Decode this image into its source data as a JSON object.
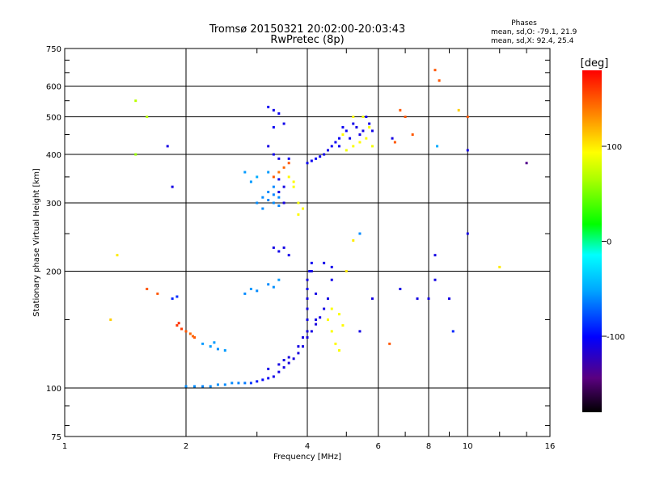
{
  "chart_data": {
    "type": "scatter",
    "title": "Tromsø 20150321 20:02:00-20:03:43",
    "subtitle": "RwPretec (8p)",
    "xlabel": "Frequency [MHz]",
    "ylabel": "Stationary phase Virtual Height [km]",
    "x_scale": "log",
    "y_scale": "log",
    "xlim": [
      1,
      16
    ],
    "ylim": [
      75,
      750
    ],
    "x_ticks": [
      "1",
      "2",
      "4",
      "6",
      "8",
      "10",
      "16"
    ],
    "x_tick_values": [
      1,
      2,
      4,
      6,
      8,
      10,
      16
    ],
    "y_ticks": [
      "75",
      "100",
      "200",
      "300",
      "400",
      "500",
      "600",
      "750"
    ],
    "y_tick_values": [
      75,
      100,
      200,
      300,
      400,
      500,
      600,
      750
    ],
    "grid": true,
    "phases_header": "Phases",
    "phases_line1": "mean, sd,O: -79.1, 21.9",
    "phases_line2": "mean, sd,X:  92.4, 25.4",
    "colorbar": {
      "label": "[deg]",
      "range": [
        -180,
        180
      ],
      "ticks": [
        "100",
        "0",
        "-100"
      ],
      "tick_values": [
        100,
        0,
        -100
      ]
    },
    "series": [
      {
        "values": [
          [
            2.0,
            101,
            -60
          ],
          [
            2.1,
            101,
            -60
          ],
          [
            2.2,
            101,
            -62
          ],
          [
            2.3,
            101,
            -60
          ],
          [
            2.4,
            102,
            -58
          ],
          [
            2.5,
            102,
            -60
          ],
          [
            2.6,
            103,
            -60
          ],
          [
            2.7,
            103,
            -62
          ],
          [
            2.8,
            103,
            -65
          ],
          [
            2.9,
            103,
            -85
          ],
          [
            3.0,
            104,
            -95
          ],
          [
            3.1,
            105,
            -100
          ],
          [
            3.2,
            106,
            -105
          ],
          [
            3.3,
            107,
            -108
          ],
          [
            3.4,
            110,
            -110
          ],
          [
            3.5,
            113,
            -110
          ],
          [
            3.6,
            116,
            -112
          ],
          [
            3.7,
            119,
            -112
          ],
          [
            3.8,
            123,
            -112
          ],
          [
            3.9,
            128,
            -110
          ],
          [
            4.0,
            135,
            -112
          ],
          [
            4.1,
            140,
            -110
          ],
          [
            4.2,
            146,
            -112
          ],
          [
            4.3,
            152,
            -110
          ],
          [
            4.4,
            160,
            -110
          ],
          [
            4.5,
            170,
            -110
          ],
          [
            3.4,
            115,
            -110
          ],
          [
            3.6,
            120,
            -112
          ],
          [
            3.8,
            128,
            -110
          ],
          [
            4.0,
            140,
            -112
          ],
          [
            4.2,
            150,
            -110
          ],
          [
            3.2,
            112,
            -108
          ],
          [
            3.5,
            118,
            -110
          ],
          [
            3.9,
            135,
            -112
          ],
          [
            4.0,
            150,
            -108
          ],
          [
            4.0,
            160,
            -110
          ],
          [
            4.0,
            170,
            -110
          ],
          [
            4.0,
            180,
            -108
          ],
          [
            4.0,
            190,
            -110
          ],
          [
            4.05,
            200,
            -108
          ],
          [
            4.1,
            210,
            -105
          ],
          [
            4.6,
            190,
            -108
          ],
          [
            4.6,
            205,
            -108
          ],
          [
            4.4,
            210,
            -108
          ],
          [
            4.2,
            175,
            -110
          ],
          [
            4.1,
            200,
            -110
          ],
          [
            4.0,
            380,
            -105
          ],
          [
            4.2,
            390,
            -105
          ],
          [
            4.4,
            400,
            -108
          ],
          [
            4.6,
            420,
            -105
          ],
          [
            4.8,
            440,
            -105
          ],
          [
            5.0,
            460,
            -105
          ],
          [
            5.2,
            480,
            -108
          ],
          [
            4.9,
            470,
            -105
          ],
          [
            4.3,
            395,
            -105
          ],
          [
            4.5,
            410,
            -108
          ],
          [
            4.7,
            430,
            -105
          ],
          [
            5.3,
            470,
            -110
          ],
          [
            5.5,
            460,
            -110
          ],
          [
            5.7,
            480,
            -110
          ],
          [
            5.8,
            460,
            -108
          ],
          [
            5.6,
            500,
            -110
          ],
          [
            4.1,
            385,
            -105
          ],
          [
            4.8,
            420,
            -105
          ],
          [
            5.1,
            440,
            -108
          ],
          [
            5.4,
            450,
            -110
          ],
          [
            5.0,
            410,
            90
          ],
          [
            5.2,
            420,
            92
          ],
          [
            5.4,
            430,
            95
          ],
          [
            5.6,
            440,
            95
          ],
          [
            5.8,
            420,
            90
          ],
          [
            5.5,
            500,
            90
          ],
          [
            5.2,
            500,
            92
          ],
          [
            4.9,
            450,
            95
          ],
          [
            5.7,
            470,
            92
          ],
          [
            4.5,
            150,
            95
          ],
          [
            4.6,
            140,
            92
          ],
          [
            4.7,
            130,
            95
          ],
          [
            4.8,
            125,
            92
          ],
          [
            4.8,
            155,
            92
          ],
          [
            4.6,
            160,
            92
          ],
          [
            4.9,
            145,
            95
          ],
          [
            3.0,
            300,
            -60
          ],
          [
            3.1,
            310,
            -60
          ],
          [
            3.2,
            305,
            -62
          ],
          [
            3.3,
            300,
            -60
          ],
          [
            3.4,
            295,
            -62
          ],
          [
            3.2,
            320,
            -60
          ],
          [
            3.1,
            290,
            -60
          ],
          [
            3.3,
            315,
            -62
          ],
          [
            3.4,
            310,
            -60
          ],
          [
            3.2,
            360,
            -55
          ],
          [
            3.0,
            350,
            -50
          ],
          [
            2.9,
            340,
            -55
          ],
          [
            2.8,
            360,
            -55
          ],
          [
            3.3,
            330,
            -60
          ],
          [
            3.6,
            350,
            95
          ],
          [
            3.7,
            340,
            95
          ],
          [
            3.8,
            280,
            95
          ],
          [
            3.9,
            290,
            95
          ],
          [
            3.8,
            300,
            90
          ],
          [
            3.7,
            330,
            92
          ],
          [
            3.4,
            320,
            -110
          ],
          [
            3.5,
            330,
            -110
          ],
          [
            3.4,
            345,
            -108
          ],
          [
            3.5,
            300,
            -110
          ],
          [
            3.3,
            230,
            -110
          ],
          [
            3.4,
            225,
            -108
          ],
          [
            3.5,
            230,
            -110
          ],
          [
            3.6,
            220,
            -108
          ],
          [
            3.2,
            530,
            -105
          ],
          [
            3.3,
            520,
            -108
          ],
          [
            3.4,
            510,
            -105
          ],
          [
            3.5,
            480,
            -108
          ],
          [
            3.3,
            470,
            -105
          ],
          [
            3.2,
            420,
            -110
          ],
          [
            3.3,
            400,
            -108
          ],
          [
            3.4,
            390,
            -110
          ],
          [
            3.6,
            390,
            -105
          ],
          [
            3.5,
            370,
            145
          ],
          [
            3.4,
            360,
            140
          ],
          [
            3.6,
            380,
            150
          ],
          [
            3.3,
            350,
            150
          ],
          [
            2.2,
            130,
            -55
          ],
          [
            2.3,
            128,
            -55
          ],
          [
            2.4,
            126,
            -58
          ],
          [
            2.5,
            125,
            -55
          ],
          [
            2.35,
            131,
            -55
          ],
          [
            2.0,
            140,
            150
          ],
          [
            2.05,
            138,
            145
          ],
          [
            2.1,
            135,
            150
          ],
          [
            2.08,
            136,
            145
          ],
          [
            1.9,
            145,
            160
          ],
          [
            1.95,
            142,
            160
          ],
          [
            1.92,
            147,
            165
          ],
          [
            1.85,
            170,
            -90
          ],
          [
            1.9,
            172,
            -88
          ],
          [
            2.8,
            175,
            -60
          ],
          [
            2.9,
            180,
            -55
          ],
          [
            3.0,
            178,
            -60
          ],
          [
            3.2,
            185,
            -60
          ],
          [
            3.4,
            190,
            -55
          ],
          [
            3.3,
            182,
            -58
          ],
          [
            1.6,
            180,
            150
          ],
          [
            1.7,
            175,
            150
          ],
          [
            1.5,
            550,
            70
          ],
          [
            1.5,
            400,
            60
          ],
          [
            1.6,
            500,
            70
          ],
          [
            1.8,
            420,
            -110
          ],
          [
            1.35,
            220,
            100
          ],
          [
            1.3,
            150,
            110
          ],
          [
            1.85,
            330,
            -110
          ],
          [
            6.5,
            440,
            -110
          ],
          [
            6.6,
            430,
            150
          ],
          [
            6.8,
            520,
            150
          ],
          [
            7.0,
            500,
            150
          ],
          [
            7.3,
            450,
            150
          ],
          [
            8.3,
            660,
            150
          ],
          [
            8.5,
            620,
            150
          ],
          [
            8.4,
            420,
            -50
          ],
          [
            8.3,
            220,
            -110
          ],
          [
            9.0,
            170,
            -110
          ],
          [
            9.5,
            520,
            110
          ],
          [
            9.2,
            140,
            -90
          ],
          [
            7.5,
            170,
            -110
          ],
          [
            8.0,
            170,
            -110
          ],
          [
            8.3,
            190,
            -110
          ],
          [
            10.0,
            410,
            -110
          ],
          [
            10.0,
            250,
            -110
          ],
          [
            12.0,
            205,
            100
          ],
          [
            14.0,
            380,
            -140
          ],
          [
            10.0,
            500,
            150
          ],
          [
            6.8,
            180,
            -110
          ],
          [
            6.4,
            130,
            150
          ],
          [
            5.8,
            170,
            -110
          ],
          [
            5.4,
            140,
            -110
          ],
          [
            5.2,
            240,
            100
          ],
          [
            5.4,
            250,
            -60
          ],
          [
            5.0,
            200,
            100
          ]
        ]
      }
    ]
  }
}
